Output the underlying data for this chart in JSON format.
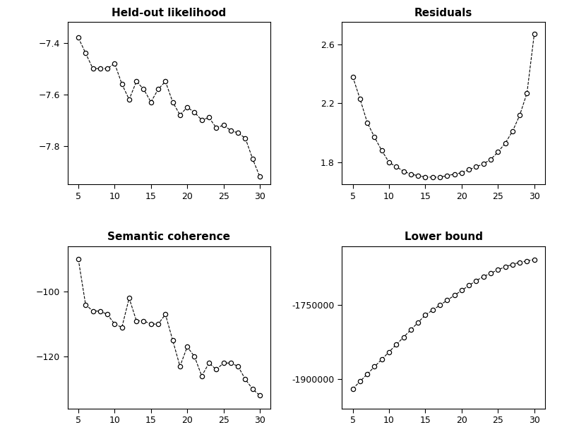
{
  "x": [
    5,
    6,
    7,
    8,
    9,
    10,
    11,
    12,
    13,
    14,
    15,
    16,
    17,
    18,
    19,
    20,
    21,
    22,
    23,
    24,
    25,
    26,
    27,
    28,
    29,
    30
  ],
  "held_out": [
    -7.38,
    -7.44,
    -7.5,
    -7.5,
    -7.5,
    -7.48,
    -7.56,
    -7.62,
    -7.55,
    -7.58,
    -7.63,
    -7.58,
    -7.55,
    -7.63,
    -7.68,
    -7.65,
    -7.67,
    -7.7,
    -7.69,
    -7.73,
    -7.72,
    -7.74,
    -7.75,
    -7.77,
    -7.85,
    -7.92
  ],
  "residuals": [
    2.38,
    2.23,
    2.07,
    1.97,
    1.88,
    1.8,
    1.77,
    1.74,
    1.72,
    1.71,
    1.7,
    1.7,
    1.7,
    1.71,
    1.72,
    1.73,
    1.75,
    1.77,
    1.79,
    1.82,
    1.87,
    1.93,
    2.01,
    2.12,
    2.27,
    2.67
  ],
  "semantic": [
    -90,
    -104,
    -106,
    -106,
    -107,
    -110,
    -111,
    -102,
    -109,
    -109,
    -110,
    -110,
    -107,
    -115,
    -123,
    -117,
    -120,
    -126,
    -122,
    -124,
    -122,
    -122,
    -123,
    -127,
    -130,
    -132
  ],
  "lower_bound": [
    -1920000,
    -1905000,
    -1890000,
    -1875000,
    -1860000,
    -1845000,
    -1830000,
    -1815000,
    -1800000,
    -1785000,
    -1770000,
    -1760000,
    -1750000,
    -1740000,
    -1730000,
    -1720000,
    -1710000,
    -1700000,
    -1692000,
    -1685000,
    -1678000,
    -1672000,
    -1667000,
    -1663000,
    -1660000,
    -1657000
  ],
  "held_out_yticks": [
    -7.4,
    -7.6,
    -7.8
  ],
  "residuals_yticks": [
    1.8,
    2.2,
    2.6
  ],
  "semantic_yticks": [
    -100,
    -120
  ],
  "lower_bound_yticks": [
    -1900000,
    -1750000
  ],
  "xticks": [
    5,
    10,
    15,
    20,
    25,
    30
  ],
  "titles": [
    "Held-out likelihood",
    "Residuals",
    "Semantic coherence",
    "Lower bound"
  ],
  "bg_color": "#ffffff",
  "line_color": "#000000",
  "marker_face": "#ffffff",
  "marker_edge": "#000000"
}
